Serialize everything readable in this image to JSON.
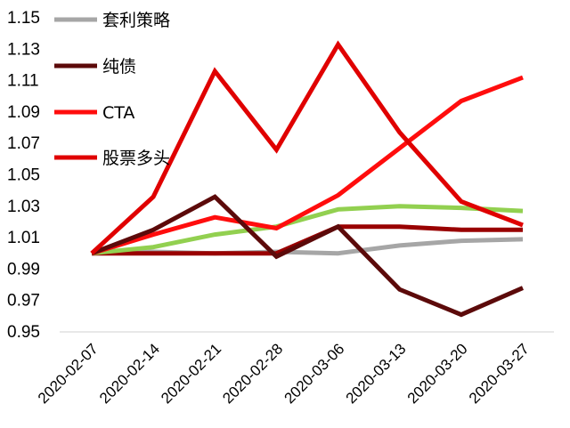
{
  "chart_data": {
    "type": "line",
    "title": "",
    "xlabel": "",
    "ylabel": "",
    "categories": [
      "2020-02-07",
      "2020-02-14",
      "2020-02-21",
      "2020-02-28",
      "2020-03-06",
      "2020-03-13",
      "2020-03-20",
      "2020-03-27"
    ],
    "yticks": [
      "0.95",
      "0.97",
      "0.99",
      "1.01",
      "1.03",
      "1.05",
      "1.07",
      "1.09",
      "1.11",
      "1.13",
      "1.15"
    ],
    "ylim": [
      0.95,
      1.15
    ],
    "grid": false,
    "legend_position": "top-left",
    "series": [
      {
        "name": "套利策略",
        "color": "#a6a6a6",
        "values": [
          1.0,
          1.001,
          1.0,
          1.001,
          1.0,
          1.005,
          1.008,
          1.009
        ]
      },
      {
        "name": "纯债",
        "color": "#5c0a0a",
        "values": [
          1.0,
          1.015,
          1.036,
          0.998,
          1.017,
          0.977,
          0.961,
          0.978
        ]
      },
      {
        "name": "CTA",
        "color": "#ff0d0d",
        "values": [
          1.0,
          1.012,
          1.023,
          1.016,
          1.037,
          1.067,
          1.097,
          1.112
        ]
      },
      {
        "name": "股票多头",
        "color": "#e00000",
        "values": [
          1.0,
          1.036,
          1.116,
          1.066,
          1.133,
          1.077,
          1.033,
          1.018
        ]
      },
      {
        "name": "",
        "color": "#92d050",
        "values": [
          1.0,
          1.004,
          1.012,
          1.017,
          1.028,
          1.03,
          1.029,
          1.027
        ]
      },
      {
        "name": "",
        "color": "#990000",
        "values": [
          1.0,
          1.0,
          1.0,
          1.0,
          1.017,
          1.017,
          1.015,
          1.015
        ]
      }
    ]
  }
}
